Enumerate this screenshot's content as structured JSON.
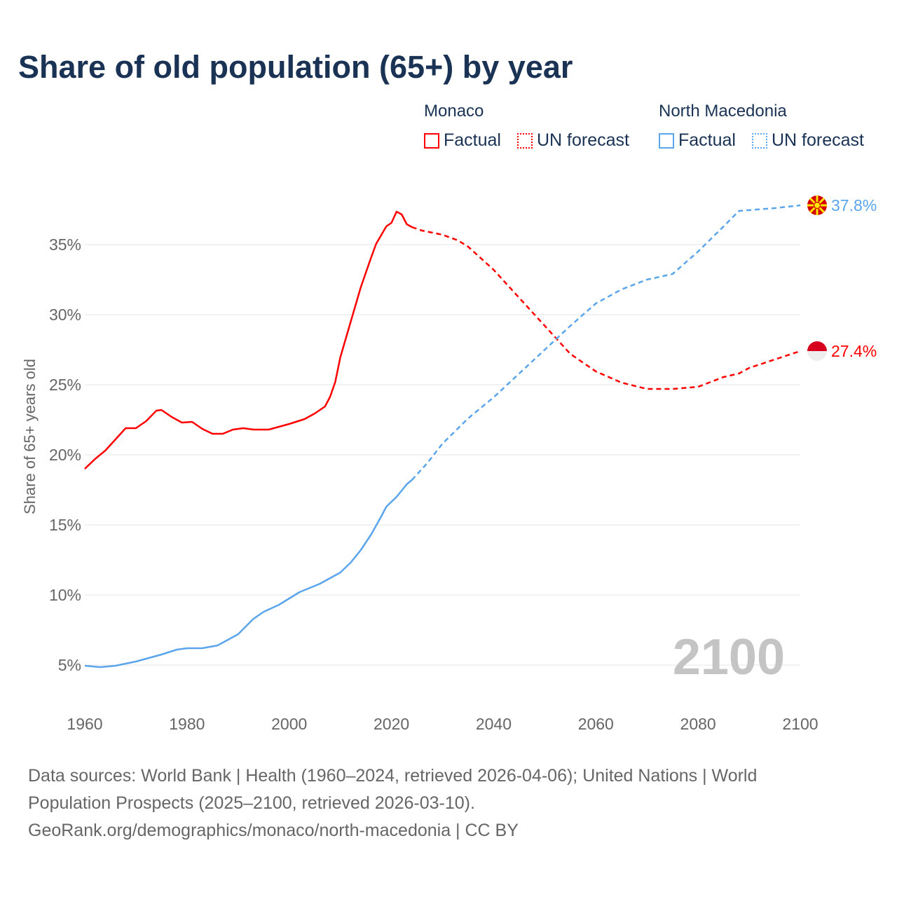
{
  "title": "Share of old population (65+) by year",
  "legend": {
    "groups": [
      {
        "name": "Monaco",
        "factual": "Factual",
        "forecast": "UN forecast",
        "color": "#ff0000"
      },
      {
        "name": "North Macedonia",
        "factual": "Factual",
        "forecast": "UN forecast",
        "color": "#5aa5ec"
      }
    ]
  },
  "source": {
    "line1": "Data sources: World Bank | Health (1960–2024, retrieved 2026-04-06); United Nations | World",
    "line2": "Population Prospects (2025–2100, retrieved 2026-03-10).",
    "line3": "GeoRank.org/demographics/monaco/north-macedonia | CC BY"
  },
  "chart_data": {
    "type": "line",
    "title": "Share of old population (65+) by year",
    "ylabel": "Share of 65+ years old",
    "xlabel": "",
    "xlim": [
      1960,
      2100
    ],
    "ylim": [
      2.5,
      39
    ],
    "xticks": [
      "1960",
      "1980",
      "2000",
      "2020",
      "2040",
      "2060",
      "2080",
      "2100"
    ],
    "yticks": [
      {
        "v": 5,
        "label": "5%"
      },
      {
        "v": 10,
        "label": "10%"
      },
      {
        "v": 15,
        "label": "15%"
      },
      {
        "v": 20,
        "label": "20%"
      },
      {
        "v": 25,
        "label": "25%"
      },
      {
        "v": 30,
        "label": "30%"
      },
      {
        "v": 35,
        "label": "35%"
      }
    ],
    "year_watermark": "2100",
    "series": [
      {
        "name": "Monaco",
        "color": "#ff0000",
        "end_label": "27.4%",
        "factual": [
          [
            1960,
            19.0
          ],
          [
            1962,
            19.7
          ],
          [
            1964,
            20.3
          ],
          [
            1966,
            21.1
          ],
          [
            1968,
            21.9
          ],
          [
            1970,
            21.9
          ],
          [
            1972,
            22.4
          ],
          [
            1974,
            23.15
          ],
          [
            1975,
            23.2
          ],
          [
            1977,
            22.7
          ],
          [
            1979,
            22.3
          ],
          [
            1981,
            22.35
          ],
          [
            1983,
            21.85
          ],
          [
            1985,
            21.5
          ],
          [
            1987,
            21.5
          ],
          [
            1989,
            21.8
          ],
          [
            1991,
            21.9
          ],
          [
            1993,
            21.8
          ],
          [
            1996,
            21.8
          ],
          [
            2000,
            22.2
          ],
          [
            2003,
            22.55
          ],
          [
            2005,
            22.95
          ],
          [
            2007,
            23.45
          ],
          [
            2008,
            24.15
          ],
          [
            2009,
            25.2
          ],
          [
            2010,
            26.95
          ],
          [
            2012,
            29.45
          ],
          [
            2014,
            31.95
          ],
          [
            2016,
            34.05
          ],
          [
            2017,
            35.05
          ],
          [
            2019,
            36.3
          ],
          [
            2020,
            36.55
          ],
          [
            2021,
            37.35
          ],
          [
            2022,
            37.15
          ],
          [
            2023,
            36.45
          ],
          [
            2024,
            36.25
          ]
        ],
        "forecast": [
          [
            2024,
            36.25
          ],
          [
            2026,
            36.0
          ],
          [
            2030,
            35.7
          ],
          [
            2033,
            35.3
          ],
          [
            2035,
            34.85
          ],
          [
            2040,
            33.2
          ],
          [
            2045,
            31.2
          ],
          [
            2050,
            29.2
          ],
          [
            2055,
            27.2
          ],
          [
            2060,
            25.95
          ],
          [
            2065,
            25.15
          ],
          [
            2070,
            24.7
          ],
          [
            2075,
            24.7
          ],
          [
            2080,
            24.85
          ],
          [
            2085,
            25.55
          ],
          [
            2088,
            25.8
          ],
          [
            2090,
            26.2
          ],
          [
            2095,
            26.8
          ],
          [
            2100,
            27.4
          ]
        ]
      },
      {
        "name": "North Macedonia",
        "color": "#5aa5ec",
        "end_label": "37.8%",
        "factual": [
          [
            1960,
            4.95
          ],
          [
            1963,
            4.85
          ],
          [
            1966,
            4.95
          ],
          [
            1970,
            5.25
          ],
          [
            1975,
            5.75
          ],
          [
            1978,
            6.1
          ],
          [
            1980,
            6.2
          ],
          [
            1983,
            6.2
          ],
          [
            1986,
            6.4
          ],
          [
            1990,
            7.2
          ],
          [
            1993,
            8.3
          ],
          [
            1995,
            8.8
          ],
          [
            1998,
            9.3
          ],
          [
            2000,
            9.75
          ],
          [
            2002,
            10.2
          ],
          [
            2004,
            10.5
          ],
          [
            2006,
            10.8
          ],
          [
            2010,
            11.6
          ],
          [
            2012,
            12.3
          ],
          [
            2014,
            13.2
          ],
          [
            2016,
            14.3
          ],
          [
            2018,
            15.6
          ],
          [
            2019,
            16.3
          ],
          [
            2021,
            17.0
          ],
          [
            2023,
            17.9
          ],
          [
            2024,
            18.2
          ]
        ],
        "forecast": [
          [
            2024,
            18.2
          ],
          [
            2027,
            19.4
          ],
          [
            2030,
            20.8
          ],
          [
            2035,
            22.6
          ],
          [
            2040,
            24.1
          ],
          [
            2045,
            25.8
          ],
          [
            2050,
            27.5
          ],
          [
            2055,
            29.2
          ],
          [
            2060,
            30.8
          ],
          [
            2065,
            31.8
          ],
          [
            2070,
            32.5
          ],
          [
            2075,
            32.9
          ],
          [
            2080,
            34.5
          ],
          [
            2085,
            36.3
          ],
          [
            2088,
            37.4
          ],
          [
            2095,
            37.6
          ],
          [
            2100,
            37.8
          ]
        ]
      }
    ]
  }
}
